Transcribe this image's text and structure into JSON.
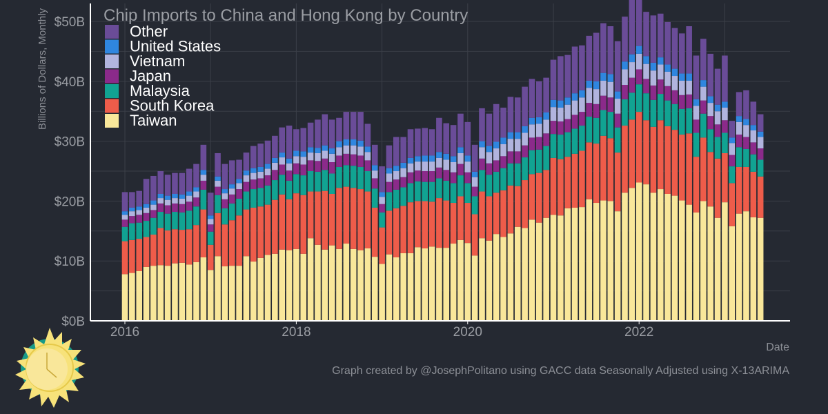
{
  "chart_data": {
    "type": "bar",
    "stacked": true,
    "title": "Chip Imports to China and Hong Kong by Country",
    "xlabel": "Date",
    "ylabel": "Billions of Dollars, Monthly",
    "ylim": [
      0,
      53
    ],
    "ytick_values": [
      0,
      10,
      20,
      30,
      40,
      50
    ],
    "ytick_labels": [
      "$0B",
      "$10B",
      "$20B",
      "$30B",
      "$40B",
      "$50B"
    ],
    "xtick_labels": [
      "2016",
      "2018",
      "2020",
      "2022"
    ],
    "legend_position": "top-left",
    "grid": true,
    "caption": "Graph created by @JosephPolitano using GACC data Seasonally Adjusted using X-13ARIMA",
    "x_start": "2016-01",
    "series": [
      {
        "name": "Taiwan",
        "color": "#f9e79a",
        "values": [
          7.8,
          8.0,
          8.3,
          9.0,
          9.2,
          9.3,
          9.2,
          9.6,
          9.7,
          9.4,
          9.8,
          10.6,
          8.5,
          10.8,
          9.1,
          9.2,
          9.2,
          10.8,
          9.9,
          10.5,
          11.0,
          11.2,
          11.9,
          11.8,
          12.0,
          11.2,
          13.8,
          12.7,
          11.9,
          12.6,
          12.0,
          12.9,
          12.0,
          11.8,
          12.1,
          10.7,
          9.5,
          11.1,
          10.6,
          11.3,
          11.3,
          12.3,
          12.1,
          12.4,
          12.2,
          12.2,
          12.9,
          13.5,
          13.0,
          10.9,
          13.8,
          13.4,
          14.5,
          14.0,
          14.6,
          15.7,
          15.5,
          16.9,
          16.4,
          17.2,
          17.7,
          17.6,
          18.8,
          18.9,
          19.0,
          20.3,
          19.7,
          20.1,
          20.0,
          18.3,
          21.4,
          22.2,
          23.1,
          22.8,
          21.4,
          22.0,
          21.2,
          20.9,
          20.1,
          19.4,
          18.1,
          20.0,
          19.1,
          17.2,
          19.8,
          15.8,
          17.9,
          18.3,
          17.3,
          17.2
        ]
      },
      {
        "name": "South Korea",
        "color": "#ee5c4a",
        "values": [
          5.5,
          5.5,
          5.4,
          5.0,
          5.2,
          6.2,
          5.9,
          5.7,
          5.5,
          5.9,
          6.2,
          8.0,
          4.2,
          7.2,
          7.0,
          7.6,
          8.4,
          7.8,
          9.0,
          8.6,
          8.4,
          9.0,
          9.2,
          8.5,
          9.3,
          9.8,
          7.8,
          8.9,
          9.8,
          8.6,
          10.2,
          9.5,
          10.2,
          10.2,
          9.5,
          8.2,
          6.1,
          7.3,
          8.2,
          7.9,
          8.5,
          7.7,
          7.9,
          7.5,
          8.3,
          7.9,
          6.8,
          7.3,
          6.7,
          6.9,
          7.8,
          7.4,
          6.9,
          7.8,
          8.0,
          6.8,
          8.0,
          7.6,
          8.3,
          8.0,
          9.5,
          9.4,
          8.6,
          9.0,
          9.4,
          9.5,
          9.9,
          10.8,
          10.5,
          9.8,
          11.2,
          11.4,
          11.8,
          10.7,
          11.0,
          11.5,
          11.3,
          11.0,
          11.0,
          11.9,
          9.3,
          10.6,
          9.1,
          9.9,
          8.2,
          7.2,
          7.8,
          7.4,
          7.6,
          6.9
        ]
      },
      {
        "name": "Malaysia",
        "color": "#11a392",
        "values": [
          2.4,
          2.8,
          2.7,
          2.7,
          2.8,
          2.7,
          2.8,
          2.9,
          2.9,
          3.1,
          3.1,
          3.3,
          2.2,
          3.0,
          2.7,
          2.8,
          2.8,
          3.0,
          3.1,
          3.1,
          3.2,
          3.3,
          3.3,
          3.1,
          3.2,
          3.3,
          3.4,
          3.3,
          3.5,
          3.4,
          3.5,
          3.6,
          3.7,
          3.7,
          3.4,
          3.2,
          2.5,
          3.1,
          3.1,
          3.1,
          3.2,
          3.3,
          3.2,
          3.3,
          3.3,
          3.3,
          3.3,
          3.5,
          3.3,
          3.0,
          3.6,
          3.6,
          3.5,
          3.7,
          3.7,
          3.8,
          3.8,
          4.0,
          3.9,
          4.0,
          4.0,
          4.1,
          4.1,
          4.2,
          4.2,
          4.3,
          4.3,
          4.3,
          4.4,
          4.2,
          4.4,
          4.5,
          4.6,
          4.5,
          4.5,
          4.4,
          4.3,
          4.3,
          4.3,
          4.2,
          4.0,
          4.0,
          3.8,
          3.6,
          3.4,
          2.8,
          3.3,
          3.0,
          2.9,
          2.8
        ]
      },
      {
        "name": "Japan",
        "color": "#8b2a8a",
        "values": [
          1.2,
          1.2,
          1.3,
          1.3,
          1.3,
          1.4,
          1.4,
          1.4,
          1.4,
          1.5,
          1.5,
          1.5,
          1.2,
          1.4,
          1.5,
          1.5,
          1.6,
          1.6,
          1.6,
          1.6,
          1.7,
          1.7,
          1.7,
          1.7,
          1.8,
          1.8,
          1.8,
          1.8,
          1.9,
          1.9,
          1.9,
          1.9,
          1.9,
          1.9,
          1.8,
          1.7,
          1.4,
          1.7,
          1.7,
          1.7,
          1.8,
          1.8,
          1.8,
          1.8,
          1.8,
          1.8,
          1.8,
          1.9,
          1.8,
          1.6,
          1.9,
          1.9,
          1.9,
          2.0,
          2.0,
          2.0,
          2.0,
          2.1,
          2.1,
          2.1,
          2.2,
          2.2,
          2.2,
          2.3,
          2.3,
          2.3,
          2.3,
          2.4,
          2.4,
          2.3,
          2.4,
          2.5,
          2.5,
          2.4,
          2.4,
          2.4,
          2.4,
          2.3,
          2.3,
          2.3,
          2.2,
          2.2,
          2.2,
          2.1,
          2.1,
          1.9,
          2.1,
          2.0,
          2.0,
          1.9
        ]
      },
      {
        "name": "Vietnam",
        "color": "#b1b4de",
        "values": [
          0.8,
          0.8,
          0.8,
          0.9,
          0.9,
          0.9,
          0.9,
          0.9,
          0.9,
          1.0,
          1.0,
          1.0,
          0.9,
          1.0,
          1.0,
          1.0,
          1.0,
          1.1,
          1.1,
          1.1,
          1.1,
          1.2,
          1.2,
          1.2,
          1.2,
          1.3,
          1.3,
          1.3,
          1.3,
          1.4,
          1.4,
          1.4,
          1.5,
          1.5,
          1.4,
          1.3,
          1.2,
          1.4,
          1.4,
          1.5,
          1.5,
          1.5,
          1.6,
          1.6,
          1.6,
          1.7,
          1.7,
          1.8,
          1.8,
          1.6,
          1.9,
          1.9,
          2.0,
          2.0,
          2.1,
          2.1,
          2.1,
          2.2,
          2.2,
          2.3,
          2.3,
          2.3,
          2.4,
          2.4,
          2.4,
          2.5,
          2.5,
          2.5,
          2.6,
          2.5,
          2.6,
          2.6,
          2.6,
          2.5,
          2.5,
          2.5,
          2.4,
          2.4,
          2.4,
          2.3,
          2.3,
          2.3,
          2.2,
          2.2,
          2.1,
          2.0,
          2.1,
          2.0,
          2.0,
          1.9
        ]
      },
      {
        "name": "United States",
        "color": "#2f86df",
        "values": [
          0.6,
          0.6,
          0.6,
          0.6,
          0.7,
          0.7,
          0.7,
          0.7,
          0.7,
          0.7,
          0.7,
          0.8,
          0.6,
          0.7,
          0.7,
          0.7,
          0.7,
          0.8,
          0.8,
          0.8,
          0.8,
          0.8,
          0.8,
          0.8,
          0.9,
          0.9,
          0.9,
          0.9,
          0.9,
          0.9,
          1.0,
          1.0,
          1.0,
          1.0,
          0.9,
          0.9,
          0.8,
          0.9,
          0.9,
          0.9,
          0.9,
          0.9,
          1.0,
          1.0,
          1.0,
          1.0,
          1.0,
          1.0,
          1.0,
          0.9,
          1.0,
          1.0,
          1.1,
          1.1,
          1.1,
          1.1,
          1.1,
          1.1,
          1.1,
          1.2,
          1.2,
          1.2,
          1.2,
          1.2,
          1.2,
          1.2,
          1.3,
          1.3,
          1.3,
          1.2,
          1.3,
          1.3,
          1.3,
          1.3,
          1.3,
          1.2,
          1.2,
          1.2,
          1.2,
          1.2,
          1.1,
          1.1,
          1.1,
          1.1,
          1.0,
          0.9,
          1.0,
          1.0,
          0.9,
          0.9
        ]
      },
      {
        "name": "Other",
        "color": "#6a4c98",
        "values": [
          3.2,
          2.6,
          2.6,
          4.2,
          4.1,
          3.8,
          3.5,
          3.5,
          3.6,
          3.8,
          3.9,
          4.2,
          3.8,
          3.9,
          4.2,
          4.0,
          3.2,
          3.0,
          3.7,
          3.9,
          3.9,
          3.7,
          4.2,
          5.5,
          3.6,
          3.9,
          4.1,
          4.7,
          5.2,
          4.8,
          3.9,
          4.6,
          4.6,
          4.8,
          3.8,
          3.4,
          4.3,
          3.8,
          4.8,
          4.3,
          4.8,
          4.6,
          4.6,
          4.4,
          5.7,
          5.1,
          5.2,
          5.6,
          5.6,
          4.5,
          5.5,
          5.4,
          6.3,
          5.0,
          5.9,
          5.8,
          6.6,
          6.5,
          6.0,
          5.8,
          6.7,
          7.4,
          7.1,
          7.8,
          7.5,
          7.5,
          8.1,
          8.3,
          8.0,
          8.4,
          7.5,
          9.4,
          8.6,
          7.4,
          7.9,
          7.3,
          7.1,
          6.8,
          6.7,
          7.9,
          7.3,
          6.9,
          7.1,
          6.0,
          7.7,
          2.8,
          4.0,
          4.8,
          3.9,
          2.9
        ]
      }
    ]
  }
}
